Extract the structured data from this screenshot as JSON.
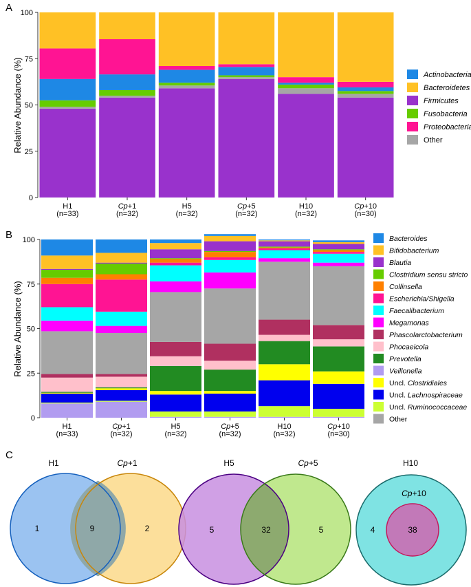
{
  "panels": {
    "a": "A",
    "b": "B",
    "c": "C"
  },
  "chart_data": [
    {
      "type": "bar",
      "stacked": true,
      "ylabel": "Relative Abundance (%)",
      "ylim": [
        0,
        100
      ],
      "yticks": [
        "0",
        "25",
        "50",
        "75",
        "100"
      ],
      "categories": [
        {
          "name": "H1",
          "n": "(n=33)",
          "italic_prefix": "",
          "suffix": ""
        },
        {
          "name": "+1",
          "n": "(n=32)",
          "italic_prefix": "Cp",
          "suffix": "+1"
        },
        {
          "name": "H5",
          "n": "(n=32)",
          "italic_prefix": "",
          "suffix": ""
        },
        {
          "name": "+5",
          "n": "(n=32)",
          "italic_prefix": "Cp",
          "suffix": "+5"
        },
        {
          "name": "H10",
          "n": "(n=32)",
          "italic_prefix": "",
          "suffix": ""
        },
        {
          "name": "+10",
          "n": "(n=30)",
          "italic_prefix": "Cp",
          "suffix": "+10"
        }
      ],
      "series": [
        {
          "name": "Firmicutes",
          "italic": true,
          "color": "#9932CC",
          "values": [
            48,
            54,
            59,
            64,
            56,
            54
          ]
        },
        {
          "name": "Other",
          "italic": false,
          "color": "#A6A6A6",
          "values": [
            1,
            1,
            1.5,
            1,
            3,
            2
          ]
        },
        {
          "name": "Fusobacteria",
          "italic": true,
          "color": "#66CC00",
          "values": [
            3.5,
            3,
            1.5,
            1,
            2,
            1.5
          ]
        },
        {
          "name": "Actinobacteria",
          "italic": true,
          "color": "#1E88E5",
          "values": [
            11.5,
            8.5,
            7,
            4.5,
            1,
            2
          ]
        },
        {
          "name": "Proteobacteria",
          "italic": true,
          "color": "#FF1493",
          "values": [
            16.5,
            19,
            2,
            1.5,
            3,
            3
          ]
        },
        {
          "name": "Bacteroidetes",
          "italic": true,
          "color": "#FFC125",
          "values": [
            19.5,
            14.5,
            29,
            28,
            35,
            37.5
          ]
        }
      ],
      "legend_order": [
        "Actinobacteria",
        "Bacteroidetes",
        "Firmicutes",
        "Fusobacteria",
        "Proteobacteria",
        "Other"
      ]
    },
    {
      "type": "bar",
      "stacked": true,
      "ylabel": "Relative Abundance (%)",
      "ylim": [
        0,
        100
      ],
      "yticks": [
        "0",
        "25",
        "50",
        "75",
        "100"
      ],
      "categories": [
        {
          "name": "H1",
          "n": "(n=33)",
          "italic_prefix": "",
          "suffix": ""
        },
        {
          "name": "+1",
          "n": "(n=32)",
          "italic_prefix": "Cp",
          "suffix": "+1"
        },
        {
          "name": "H5",
          "n": "(n=32)",
          "italic_prefix": "",
          "suffix": ""
        },
        {
          "name": "+5",
          "n": "(n=32)",
          "italic_prefix": "Cp",
          "suffix": "+5"
        },
        {
          "name": "H10",
          "n": "(n=32)",
          "italic_prefix": "",
          "suffix": ""
        },
        {
          "name": "+10",
          "n": "(n=30)",
          "italic_prefix": "Cp",
          "suffix": "+10"
        }
      ],
      "series": [
        {
          "name": "Veillonella",
          "color": "#B19CF0",
          "values": [
            8,
            9,
            0.5,
            0.5,
            0.5,
            0.5
          ]
        },
        {
          "name": "Uncl. Ruminococcaceae",
          "color": "#CCFF33",
          "values": [
            0.5,
            0.5,
            3,
            3,
            6,
            4.5
          ]
        },
        {
          "name": "Uncl. Lachnospiraceae",
          "color": "#0000EE",
          "values": [
            5,
            6,
            9.5,
            10,
            14.5,
            14
          ]
        },
        {
          "name": "Uncl. Clostridiales",
          "color": "#FFFF00",
          "values": [
            0.5,
            1,
            2,
            1.5,
            9,
            7
          ]
        },
        {
          "name": "Prevotella",
          "color": "#228B22",
          "values": [
            0.5,
            0.5,
            14,
            12,
            13,
            14
          ]
        },
        {
          "name": "Phocaeicola",
          "color": "#FFC0CB",
          "values": [
            8,
            6,
            5.5,
            5,
            3.5,
            4
          ]
        },
        {
          "name": "Phascolarctobacterium",
          "color": "#B03060",
          "values": [
            2,
            1.5,
            8,
            9.5,
            8.5,
            8
          ]
        },
        {
          "name": "Other",
          "color": "#A6A6A6",
          "values": [
            24,
            23,
            28,
            31,
            32.5,
            33
          ]
        },
        {
          "name": "Megamonas",
          "color": "#FF00FF",
          "values": [
            6,
            4,
            6,
            9,
            2,
            2
          ]
        },
        {
          "name": "Faecalibacterium",
          "color": "#00FFFF",
          "values": [
            7.5,
            8,
            9,
            7,
            4.5,
            5
          ]
        },
        {
          "name": "Escherichia/Shigella",
          "color": "#FF1493",
          "values": [
            13,
            18,
            1.5,
            1.5,
            1,
            1
          ]
        },
        {
          "name": "Collinsella",
          "color": "#FF8000",
          "values": [
            3.5,
            3,
            2,
            3,
            0.5,
            1
          ]
        },
        {
          "name": "Clostridium sensu stricto",
          "color": "#66CC00",
          "values": [
            4.5,
            6,
            0.5,
            0.5,
            0.5,
            0.5
          ]
        },
        {
          "name": "Blautia",
          "color": "#9932CC",
          "values": [
            0.5,
            0.5,
            5,
            5.5,
            3,
            3
          ]
        },
        {
          "name": "Bifidobacterium",
          "color": "#FFC125",
          "values": [
            7.5,
            5.5,
            3.5,
            3,
            0.5,
            1
          ]
        },
        {
          "name": "Bacteroides",
          "color": "#1E88E5",
          "values": [
            9,
            7.5,
            2,
            1,
            0.5,
            1
          ]
        }
      ],
      "legend": [
        {
          "pre": "",
          "it": "Bacteroides",
          "post": "",
          "key": "Bacteroides"
        },
        {
          "pre": "",
          "it": "Bifidobacterium",
          "post": "",
          "key": "Bifidobacterium"
        },
        {
          "pre": "",
          "it": "Blautia",
          "post": "",
          "key": "Blautia"
        },
        {
          "pre": "",
          "it": "Clostridium sensu stricto",
          "post": "",
          "key": "Clostridium sensu stricto"
        },
        {
          "pre": "",
          "it": "Collinsella",
          "post": "",
          "key": "Collinsella"
        },
        {
          "pre": "",
          "it": "Escherichia/Shigella",
          "post": "",
          "key": "Escherichia/Shigella"
        },
        {
          "pre": "",
          "it": "Faecalibacterium",
          "post": "",
          "key": "Faecalibacterium"
        },
        {
          "pre": "",
          "it": "Megamonas",
          "post": "",
          "key": "Megamonas"
        },
        {
          "pre": "",
          "it": "Phascolarctobacterium",
          "post": "",
          "key": "Phascolarctobacterium"
        },
        {
          "pre": "",
          "it": "Phocaeicola",
          "post": "",
          "key": "Phocaeicola"
        },
        {
          "pre": "",
          "it": "Prevotella",
          "post": "",
          "key": "Prevotella"
        },
        {
          "pre": "",
          "it": "Veillonella",
          "post": "",
          "key": "Veillonella"
        },
        {
          "pre": "Uncl. ",
          "it": "Clostridiales",
          "post": "",
          "key": "Uncl. Clostridiales"
        },
        {
          "pre": "Uncl. ",
          "it": "Lachnospiraceae",
          "post": "",
          "key": "Uncl. Lachnospiraceae"
        },
        {
          "pre": "Uncl. ",
          "it": "Ruminococcaceae",
          "post": "",
          "key": "Uncl. Ruminococcaceae"
        },
        {
          "pre": "Other",
          "it": "",
          "post": "",
          "key": "Other"
        }
      ]
    },
    {
      "type": "venn",
      "diagrams": [
        {
          "left_label": "H1",
          "right_label": "+1",
          "right_prefix": "Cp",
          "left_only": "1",
          "shared": "9",
          "right_only": "2",
          "left_color": "#8AB8EE",
          "left_stroke": "#1560BD",
          "right_color": "#FBD98A",
          "right_stroke": "#C8860A",
          "overlap_color": "#8FA8A8"
        },
        {
          "left_label": "H5",
          "right_label": "+5",
          "right_prefix": "Cp",
          "left_only": "5",
          "shared": "32",
          "right_only": "5",
          "left_color": "#C88FE0",
          "left_stroke": "#4B0082",
          "right_color": "#B5E47A",
          "right_stroke": "#3A7A1A",
          "overlap_color": "#8DAA6F"
        },
        {
          "outer_label": "H10",
          "inner_label": "+10",
          "inner_prefix": "Cp",
          "outer_only": "4",
          "shared": "38",
          "outer_color": "#7FE3E3",
          "outer_stroke": "#1A6B6B",
          "inner_color": "#C279B8",
          "inner_stroke": "#C2185B"
        }
      ]
    }
  ]
}
